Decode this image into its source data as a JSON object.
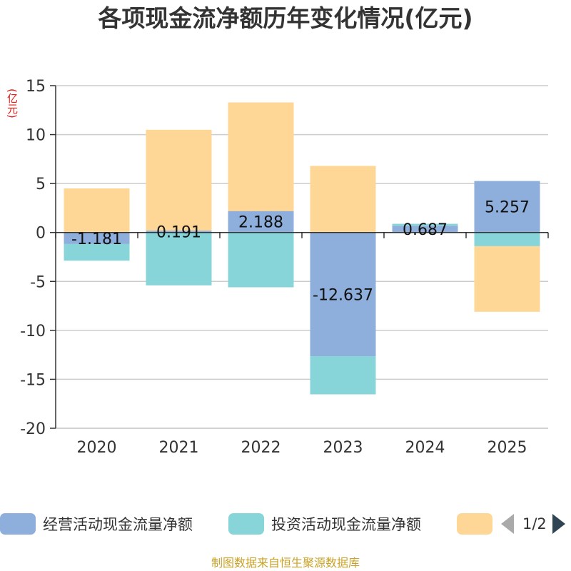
{
  "chart_data": {
    "type": "bar",
    "stacked": true,
    "title": "各项现金流净额历年变化情况(亿元)",
    "ylabel": "(亿元)",
    "xlabel": "",
    "categories": [
      "2020",
      "2021",
      "2022",
      "2023",
      "2024",
      "2025"
    ],
    "ylim": [
      -20,
      15
    ],
    "yticks": [
      15,
      10,
      5,
      0,
      -5,
      -10,
      -15,
      -20
    ],
    "grid": true,
    "series": [
      {
        "name": "经营活动现金流量净额",
        "color": "#8eaedb",
        "values": [
          -1.181,
          0.191,
          2.188,
          -12.637,
          0.687,
          5.257
        ],
        "labels": [
          "-1.181",
          "0.191",
          "2.188",
          "-12.637",
          "0.687",
          "5.257"
        ]
      },
      {
        "name": "投资活动现金流量净额",
        "color": "#87d5d8",
        "values": [
          -1.7,
          -5.4,
          -5.6,
          -3.9,
          0.2,
          -1.4
        ],
        "labels": []
      },
      {
        "name": "",
        "color": "#fed796",
        "values": [
          4.5,
          10.3,
          11.1,
          6.8,
          0.0,
          -6.7
        ],
        "labels": []
      }
    ]
  },
  "legend": {
    "page": "1/2"
  },
  "source_note": "制图数据来自恒生聚源数据库"
}
